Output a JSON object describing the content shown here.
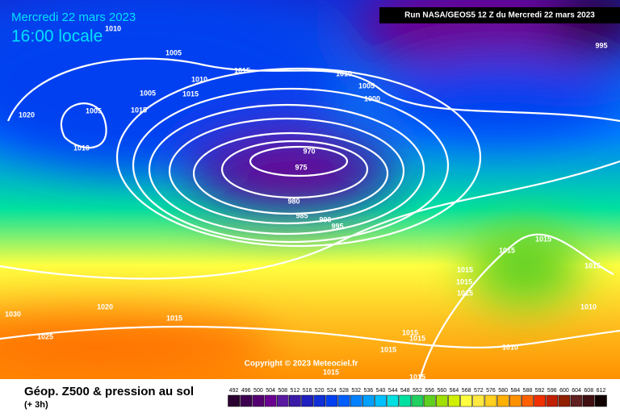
{
  "header": {
    "title": "Mercredi 22 mars 2023",
    "subtitle": "16:00 locale",
    "run_info": "Run NASA/GEOS5 12 Z du Mercredi 22 mars 2023"
  },
  "footer": {
    "caption": "Géop. Z500 & pression au sol",
    "subcaption": "(+ 3h)",
    "copyright": "Copyright © 2023 Meteociel.fr"
  },
  "legend": {
    "values": [
      492,
      496,
      500,
      504,
      508,
      512,
      516,
      520,
      524,
      528,
      532,
      536,
      540,
      544,
      548,
      552,
      556,
      560,
      564,
      568,
      572,
      576,
      580,
      584,
      588,
      592,
      596,
      600,
      604,
      608,
      612
    ],
    "colors": [
      "#2a0030",
      "#3d0050",
      "#550070",
      "#6a0090",
      "#5a1aa0",
      "#3c1aa8",
      "#2020c0",
      "#1030d8",
      "#0040f0",
      "#0060ff",
      "#0080ff",
      "#00a0ff",
      "#00c0ff",
      "#00e0e0",
      "#00e0a0",
      "#20d060",
      "#60d020",
      "#a0e000",
      "#d0f000",
      "#ffff40",
      "#ffe840",
      "#ffd020",
      "#ffb000",
      "#ff9000",
      "#ff6000",
      "#f03000",
      "#c02000",
      "#902000",
      "#602020",
      "#401010",
      "#100000"
    ]
  },
  "isobar_labels": [
    "1010",
    "1005",
    "1010",
    "1015",
    "1005",
    "1015",
    "1015",
    "1005",
    "1020",
    "1010",
    "1010",
    "1005",
    "1000",
    "970",
    "975",
    "980",
    "985",
    "990",
    "995",
    "995",
    "1015",
    "1015",
    "1015",
    "1015",
    "1015",
    "1015",
    "1010",
    "1020",
    "1030",
    "1015",
    "1025",
    "1015",
    "1015",
    "1015",
    "1010",
    "1015",
    "1015"
  ]
}
